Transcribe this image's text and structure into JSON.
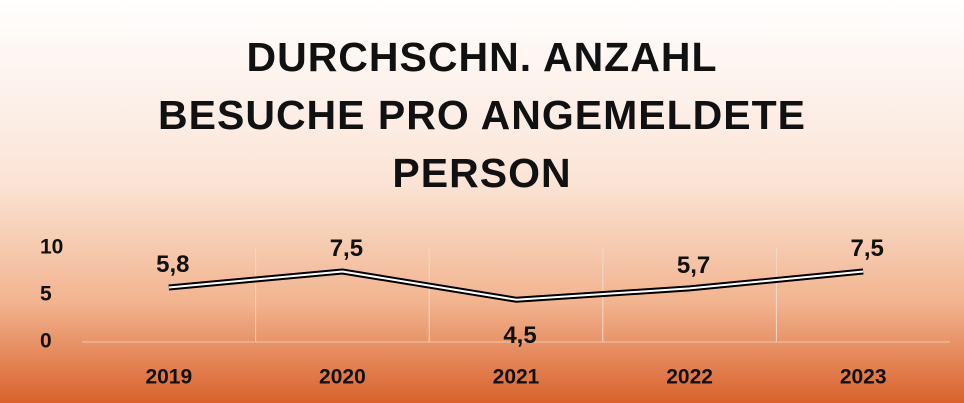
{
  "chart_data": {
    "type": "line",
    "title": "DURCHSCHN. ANZAHL BESUCHE PRO ANGEMELDETE PERSON",
    "categories": [
      "2019",
      "2020",
      "2021",
      "2022",
      "2023"
    ],
    "values": [
      5.8,
      7.5,
      4.5,
      5.7,
      7.5
    ],
    "value_labels": [
      "5,8",
      "7,5",
      "4,5",
      "5,7",
      "7,5"
    ],
    "color": "#000000",
    "ylim": [
      0,
      10
    ],
    "yticks": [
      0,
      5,
      10
    ],
    "grid": false
  }
}
